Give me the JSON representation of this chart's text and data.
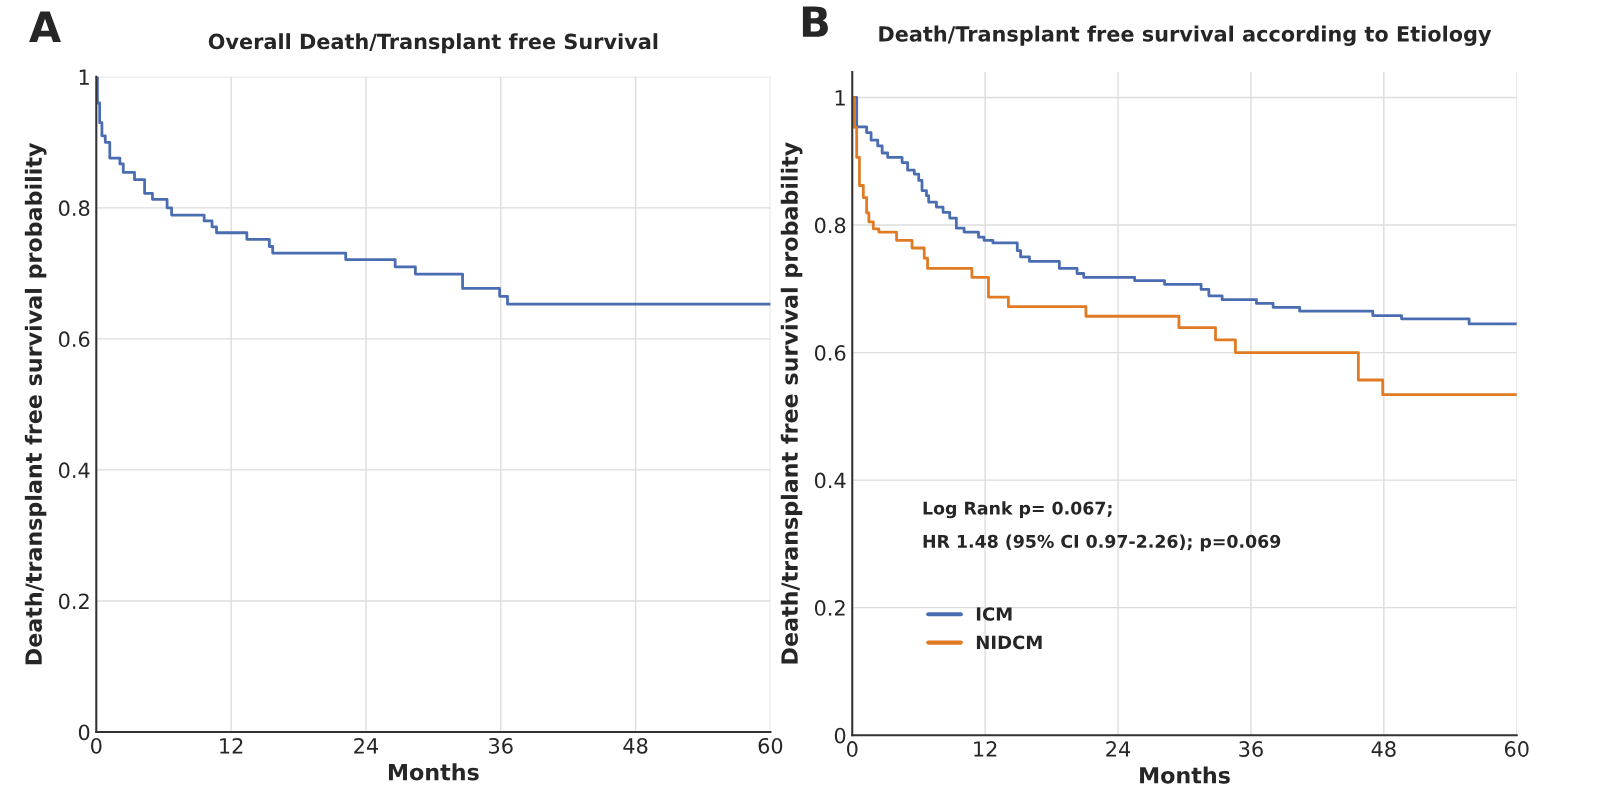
{
  "chart_data": [
    {
      "type": "step",
      "title": "Overall Death/Transplant free Survival",
      "xlabel": "Months",
      "ylabel": "Death/transplant free survival probability",
      "annotations": [
        "A"
      ],
      "xlim": [
        0,
        60
      ],
      "xticks": [
        0,
        12,
        24,
        36,
        48,
        60
      ],
      "ylim": [
        0,
        1
      ],
      "yticks": [
        0,
        0.2,
        0.4,
        0.6,
        0.8,
        1
      ],
      "grid": true,
      "legend": false,
      "series": [
        {
          "color": "#4a6cb0",
          "x": [
            0,
            0.1,
            0.3,
            0.5,
            0.8,
            1.2,
            2.1,
            2.4,
            3.4,
            4.3,
            5.0,
            6.3,
            6.7,
            9.6,
            10.3,
            10.7,
            13.4,
            15.4,
            15.7,
            22.2,
            26.6,
            28.4,
            32.6,
            35.9,
            36.6,
            60
          ],
          "values": [
            1.0,
            0.96,
            0.93,
            0.91,
            0.9,
            0.876,
            0.867,
            0.854,
            0.843,
            0.822,
            0.813,
            0.8,
            0.789,
            0.78,
            0.771,
            0.762,
            0.752,
            0.741,
            0.731,
            0.721,
            0.71,
            0.699,
            0.677,
            0.665,
            0.653,
            0.653
          ]
        }
      ]
    },
    {
      "type": "step",
      "title": "Death/Transplant free survival according to Etiology",
      "xlabel": "Months",
      "ylabel": "Death/transplant free survival probability",
      "annotations": [
        "B",
        "Log Rank p= 0.067;",
        "HR 1.48 (95% CI 0.97-2.26); p=0.069"
      ],
      "xlim": [
        0,
        60
      ],
      "xticks": [
        0,
        12,
        24,
        36,
        48,
        60
      ],
      "ylim": [
        0,
        1.04
      ],
      "yticks": [
        0,
        0.2,
        0.4,
        0.6,
        0.8,
        1
      ],
      "grid": true,
      "legend": "bottom left",
      "series": [
        {
          "name": "ICM",
          "color": "#4a6cb0",
          "x": [
            0,
            0.4,
            1.3,
            1.7,
            2.3,
            2.7,
            3.2,
            4.5,
            5.0,
            5.6,
            6.0,
            6.3,
            6.7,
            6.9,
            7.6,
            8.2,
            8.8,
            9.4,
            10.1,
            11.4,
            11.9,
            12.7,
            14.9,
            15.2,
            16.0,
            18.7,
            20.3,
            20.9,
            25.5,
            28.2,
            31.5,
            32.2,
            33.4,
            36.5,
            38.0,
            40.4,
            47.0,
            49.6,
            55.7,
            60
          ],
          "values": [
            1.0,
            0.954,
            0.945,
            0.933,
            0.924,
            0.913,
            0.906,
            0.898,
            0.886,
            0.88,
            0.87,
            0.854,
            0.846,
            0.836,
            0.828,
            0.82,
            0.811,
            0.795,
            0.789,
            0.781,
            0.776,
            0.772,
            0.76,
            0.75,
            0.743,
            0.732,
            0.724,
            0.718,
            0.713,
            0.707,
            0.699,
            0.689,
            0.683,
            0.677,
            0.671,
            0.665,
            0.658,
            0.653,
            0.645,
            0.645
          ]
        },
        {
          "name": "NIDCM",
          "color": "#e07b24",
          "x": [
            0,
            0.2,
            0.4,
            0.65,
            1.0,
            1.3,
            1.5,
            1.9,
            2.4,
            4.0,
            5.4,
            6.5,
            6.8,
            10.8,
            12.3,
            14.1,
            21.1,
            29.5,
            32.8,
            34.6,
            45.7,
            47.9,
            60
          ],
          "values": [
            1.0,
            0.953,
            0.906,
            0.862,
            0.843,
            0.819,
            0.805,
            0.794,
            0.789,
            0.776,
            0.764,
            0.748,
            0.732,
            0.718,
            0.687,
            0.672,
            0.657,
            0.639,
            0.62,
            0.6,
            0.557,
            0.534,
            0.534
          ]
        }
      ]
    }
  ]
}
